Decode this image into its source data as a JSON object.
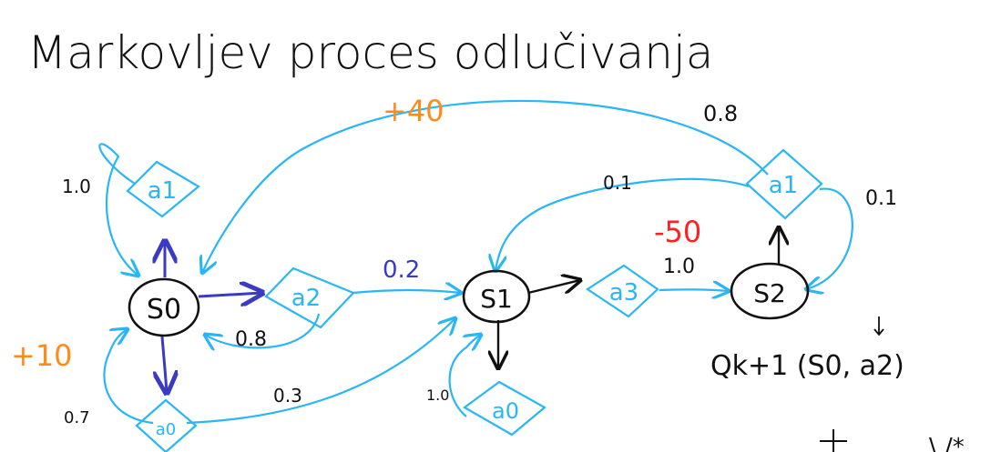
{
  "title": "Markovljev proces odlučivanja",
  "colors": {
    "ink": "#111111",
    "blue": "#29b6f6",
    "darkblue": "#3a3ac4",
    "orange": "#ff8c1a",
    "red": "#ff2020"
  },
  "states": {
    "s0": "S0",
    "s1": "S1",
    "s2": "S2"
  },
  "actions": {
    "s0_a1": "a1",
    "s0_a2": "a2",
    "s0_a0": "a0",
    "s1_a3": "a3",
    "s1_a0": "a0",
    "s2_a1": "a1"
  },
  "probabilities": {
    "p_s0a1_s0": "1.0",
    "p_s0a2_s1": "0.2",
    "p_s0a2_s0": "0.8",
    "p_s0a0_s0": "0.7",
    "p_s0a0_s1": "0.3",
    "p_s1a3_s2": "1.0",
    "p_s1a0_s1": "1.0",
    "p_s2a1_s0": "0.8",
    "p_s2a1_s1": "0.1",
    "p_s2a1_s2": "0.1"
  },
  "rewards": {
    "r_s0a0": "+10",
    "r_s2a1_s0": "+40",
    "r_s1a3_s2": "-50"
  },
  "formula": "Qk+1 (S0, a2)"
}
